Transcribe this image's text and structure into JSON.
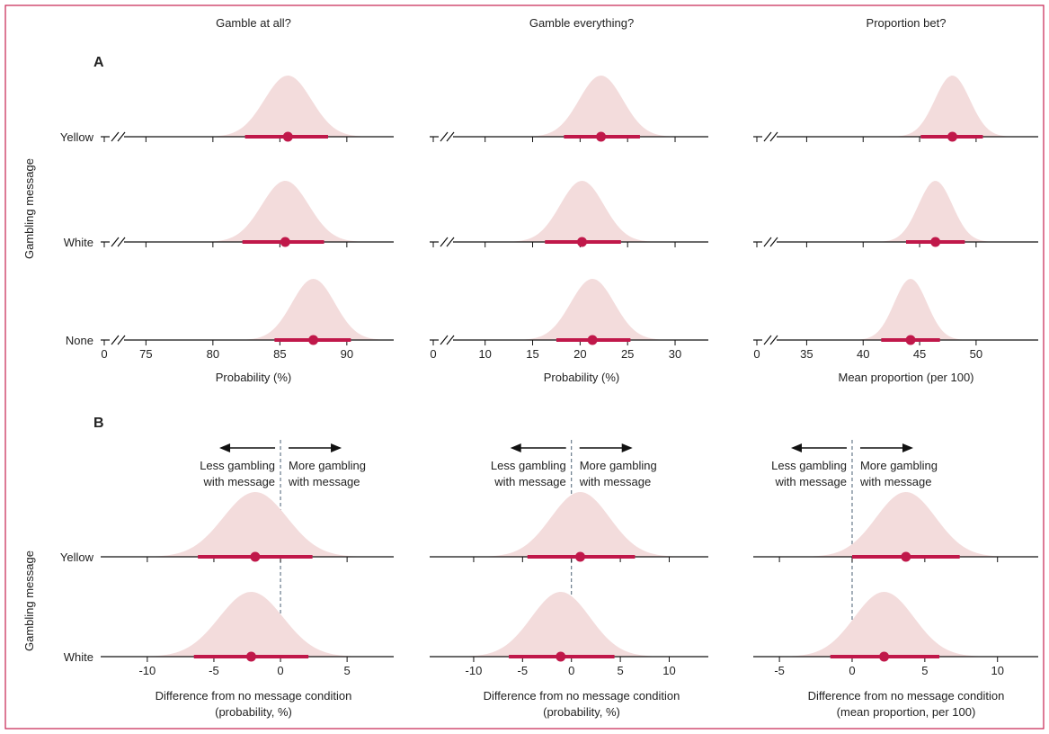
{
  "colors": {
    "frame": "#c6224f",
    "density_fill": "#f3dcdc",
    "point": "#c0184a",
    "interval": "#c0184a",
    "axis": "#111111",
    "reference_line": "#4a5f74",
    "text": "#222222"
  },
  "y_axis_label": "Gambling message",
  "sections": [
    {
      "label": "A"
    },
    {
      "label": "B"
    }
  ],
  "annotations": {
    "less": [
      "Less gambling",
      "with message"
    ],
    "more": [
      "More gambling",
      "with message"
    ]
  },
  "chart_data": [
    {
      "type": "density-interval",
      "section": "A",
      "title": "Gamble at all?",
      "xlabel": [
        "Probability (%)"
      ],
      "axis_break": true,
      "break_zero_label": "0",
      "xlim": [
        73.5,
        93.5
      ],
      "xticks": [
        75,
        80,
        85,
        90
      ],
      "categories": [
        "Yellow",
        "White",
        "None"
      ],
      "series": [
        {
          "name": "Yellow",
          "mean": 85.6,
          "interval": [
            82.4,
            88.6
          ],
          "sd": 1.75
        },
        {
          "name": "White",
          "mean": 85.4,
          "interval": [
            82.2,
            88.3
          ],
          "sd": 1.75
        },
        {
          "name": "None",
          "mean": 87.5,
          "interval": [
            84.6,
            90.3
          ],
          "sd": 1.6
        }
      ]
    },
    {
      "type": "density-interval",
      "section": "A",
      "title": "Gamble everything?",
      "xlabel": [
        "Probability (%)"
      ],
      "axis_break": true,
      "break_zero_label": "0",
      "xlim": [
        7,
        33.5
      ],
      "xticks": [
        10,
        15,
        20,
        25,
        30
      ],
      "categories": [
        "Yellow",
        "White",
        "None"
      ],
      "series": [
        {
          "name": "Yellow",
          "mean": 22.2,
          "interval": [
            18.3,
            26.3
          ],
          "sd": 2.3
        },
        {
          "name": "White",
          "mean": 20.2,
          "interval": [
            16.3,
            24.3
          ],
          "sd": 2.3
        },
        {
          "name": "None",
          "mean": 21.3,
          "interval": [
            17.5,
            25.3
          ],
          "sd": 2.3
        }
      ]
    },
    {
      "type": "density-interval",
      "section": "A",
      "title": "Proportion bet?",
      "xlabel": [
        "Mean proportion (per 100)"
      ],
      "axis_break": true,
      "break_zero_label": "0",
      "xlim": [
        32.5,
        55.5
      ],
      "xticks": [
        35,
        40,
        45,
        50
      ],
      "categories": [
        "Yellow",
        "White",
        "None"
      ],
      "series": [
        {
          "name": "Yellow",
          "mean": 47.9,
          "interval": [
            45.1,
            50.6
          ],
          "sd": 1.55
        },
        {
          "name": "White",
          "mean": 46.4,
          "interval": [
            43.8,
            49.0
          ],
          "sd": 1.5
        },
        {
          "name": "None",
          "mean": 44.2,
          "interval": [
            41.6,
            46.8
          ],
          "sd": 1.45
        }
      ]
    },
    {
      "type": "density-interval",
      "section": "B",
      "title": "",
      "xlabel": [
        "Difference from no message condition",
        "(probability, %)"
      ],
      "axis_break": false,
      "xlim": [
        -13.5,
        8.5
      ],
      "xticks": [
        -10,
        -5,
        0,
        5
      ],
      "reference_line": 0,
      "categories": [
        "Yellow",
        "White"
      ],
      "series": [
        {
          "name": "Yellow",
          "mean": -1.9,
          "interval": [
            -6.2,
            2.4
          ],
          "sd": 2.4
        },
        {
          "name": "White",
          "mean": -2.2,
          "interval": [
            -6.5,
            2.1
          ],
          "sd": 2.4
        }
      ]
    },
    {
      "type": "density-interval",
      "section": "B",
      "title": "",
      "xlabel": [
        "Difference from no message condition",
        "(probability, %)"
      ],
      "axis_break": false,
      "xlim": [
        -14.5,
        14
      ],
      "xticks": [
        -10,
        -5,
        0,
        5,
        10
      ],
      "reference_line": 0,
      "categories": [
        "Yellow",
        "White"
      ],
      "series": [
        {
          "name": "Yellow",
          "mean": 0.9,
          "interval": [
            -4.5,
            6.5
          ],
          "sd": 3.0
        },
        {
          "name": "White",
          "mean": -1.1,
          "interval": [
            -6.4,
            4.4
          ],
          "sd": 3.0
        }
      ]
    },
    {
      "type": "density-interval",
      "section": "B",
      "title": "",
      "xlabel": [
        "Difference from no message condition",
        "(mean proportion, per 100)"
      ],
      "axis_break": false,
      "xlim": [
        -6.8,
        12.8
      ],
      "xticks": [
        -5,
        0,
        5,
        10
      ],
      "reference_line": 0,
      "categories": [
        "Yellow",
        "White"
      ],
      "series": [
        {
          "name": "Yellow",
          "mean": 3.7,
          "interval": [
            0.0,
            7.4
          ],
          "sd": 2.05
        },
        {
          "name": "White",
          "mean": 2.2,
          "interval": [
            -1.5,
            6.0
          ],
          "sd": 2.05
        }
      ]
    }
  ]
}
